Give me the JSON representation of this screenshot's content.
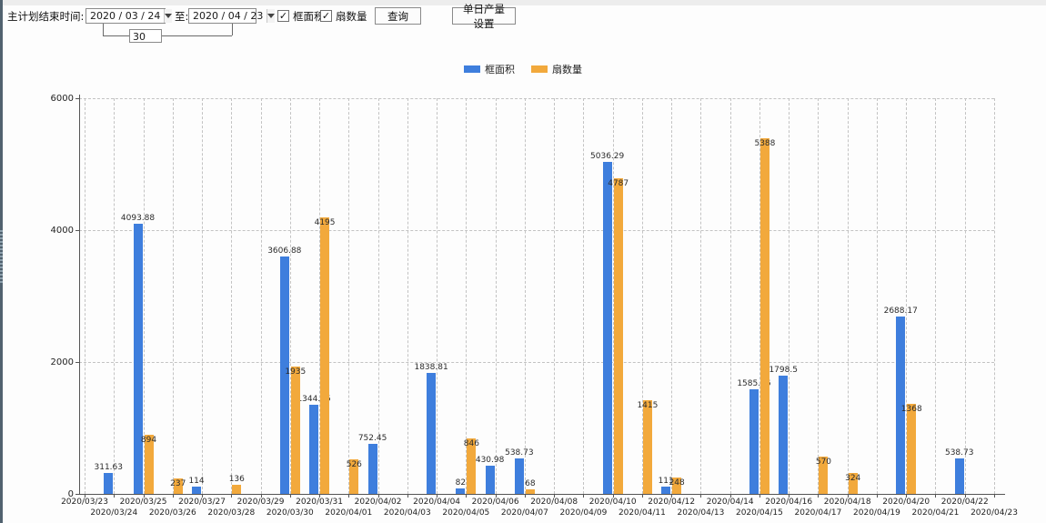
{
  "toolbar": {
    "end_time_label": "主计划结束时间:",
    "date_from": "2020 / 03 / 24",
    "to_label": "至:",
    "date_to": "2020 / 04 / 23",
    "interval_days": "30",
    "checkbox_frame_area_label": "框面积",
    "checkbox_frame_area_checked": true,
    "checkbox_fan_count_label": "扇数量",
    "checkbox_fan_count_checked": true,
    "check_glyph": "✓",
    "query_button_label": "查询",
    "daily_output_button_label": "单日产量设置"
  },
  "legend": {
    "items": [
      {
        "label": "框面积",
        "color": "#3e7edd"
      },
      {
        "label": "扇数量",
        "color": "#f2a93c"
      }
    ]
  },
  "chart_data": {
    "type": "bar",
    "title": "",
    "xlabel": "",
    "ylabel": "",
    "ylim": [
      0,
      6000
    ],
    "yticks": [
      0,
      2000,
      4000,
      6000
    ],
    "grid": "dashed",
    "legend_position": "top-center",
    "categories": [
      "2020/03/23",
      "2020/03/24",
      "2020/03/25",
      "2020/03/26",
      "2020/03/27",
      "2020/03/28",
      "2020/03/29",
      "2020/03/30",
      "2020/03/31",
      "2020/04/01",
      "2020/04/02",
      "2020/04/03",
      "2020/04/04",
      "2020/04/05",
      "2020/04/06",
      "2020/04/07",
      "2020/04/08",
      "2020/04/09",
      "2020/04/10",
      "2020/04/11",
      "2020/04/12",
      "2020/04/13",
      "2020/04/14",
      "2020/04/15",
      "2020/04/16",
      "2020/04/17",
      "2020/04/18",
      "2020/04/19",
      "2020/04/20",
      "2020/04/21",
      "2020/04/22",
      "2020/04/23"
    ],
    "series": [
      {
        "name": "框面积",
        "color": "#3e7edd",
        "values": [
          0,
          311.63,
          4093.88,
          0,
          114,
          0,
          0,
          3606.88,
          1344.95,
          0,
          752.45,
          0,
          1838.81,
          82,
          430.98,
          538.73,
          0,
          0,
          5036.29,
          0,
          111,
          0,
          0,
          1585.96,
          1798.5,
          0,
          0,
          0,
          2688.17,
          0,
          538.73,
          0
        ]
      },
      {
        "name": "扇数量",
        "color": "#f2a93c",
        "values": [
          0,
          0,
          894,
          237,
          0,
          136,
          0,
          1935,
          4195,
          526,
          0,
          0,
          0,
          846,
          0,
          68,
          0,
          0,
          4787,
          1415,
          248,
          0,
          0,
          5388,
          0,
          570,
          324,
          0,
          1368,
          0,
          0,
          0
        ]
      }
    ]
  }
}
